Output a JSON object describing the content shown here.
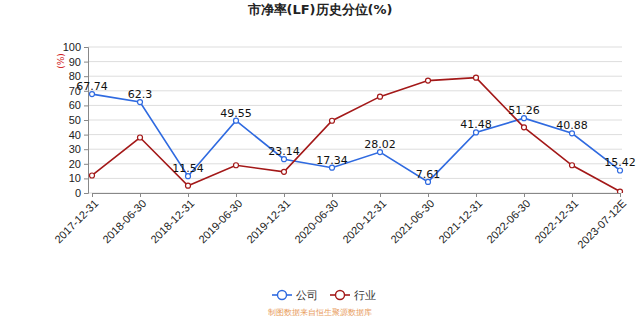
{
  "chart_data": {
    "type": "line",
    "title": "市净率(LF)历史分位(%)",
    "y_label": "(%)",
    "source": "制图数据来自恒生聚源数据库",
    "categories": [
      "2017-12-31",
      "2018-06-30",
      "2018-12-31",
      "2019-06-30",
      "2019-12-31",
      "2020-06-30",
      "2020-12-31",
      "2021-06-30",
      "2021-12-31",
      "2022-06-30",
      "2022-12-31",
      "2023-07-12E"
    ],
    "series": [
      {
        "name": "公司",
        "color": "#2f6ae0",
        "marker": "circle",
        "data_labels": true,
        "values": [
          67.74,
          62.3,
          11.54,
          49.55,
          23.14,
          17.34,
          28.02,
          7.61,
          41.48,
          51.26,
          40.88,
          15.42
        ]
      },
      {
        "name": "行业",
        "color": "#a31818",
        "marker": "circle",
        "values": [
          12,
          38,
          5,
          19,
          14.5,
          49.5,
          66,
          77,
          79,
          45,
          19,
          1
        ]
      }
    ],
    "ylim": [
      0,
      100
    ],
    "yticks": [
      0,
      10,
      20,
      30,
      40,
      50,
      60,
      70,
      80,
      90,
      100
    ],
    "grid": true,
    "legend": "bottom"
  }
}
